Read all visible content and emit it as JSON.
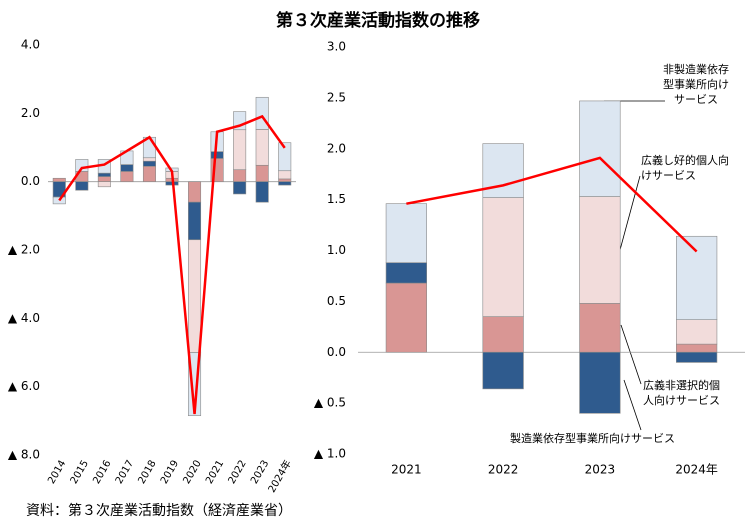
{
  "title": "第３次産業活動指数の推移",
  "source": "資料：第３次産業活動指数（経済産業省）",
  "chart_data": [
    {
      "type": "bar",
      "stacked": true,
      "categories": [
        "2014",
        "2015",
        "2016",
        "2017",
        "2018",
        "2019",
        "2020",
        "2021",
        "2022",
        "2023",
        "2024年"
      ],
      "ylim": [
        -8,
        4
      ],
      "yticks": [
        {
          "value": 4,
          "label": "4.0"
        },
        {
          "value": 2,
          "label": "2.0"
        },
        {
          "value": 0,
          "label": "0.0"
        },
        {
          "value": -2,
          "label": "▲ 2.0"
        },
        {
          "value": -4,
          "label": "▲ 4.0"
        },
        {
          "value": -6,
          "label": "▲ 6.0"
        },
        {
          "value": -8,
          "label": "▲ 8.0"
        }
      ],
      "series": [
        {
          "color": "#2f5b8e",
          "values": [
            -0.45,
            -0.25,
            0.1,
            0.2,
            0.15,
            -0.1,
            -1.1,
            0.2,
            -0.36,
            -0.6,
            -0.1
          ]
        },
        {
          "color": "#d99694",
          "values": [
            0.1,
            0.3,
            0.15,
            0.3,
            0.45,
            0.1,
            -0.6,
            0.68,
            0.35,
            0.48,
            0.08
          ]
        },
        {
          "color": "#f2dcdb",
          "values": [
            0,
            0,
            -0.15,
            0,
            0.1,
            0.2,
            -3.3,
            0,
            1.17,
            1.05,
            0.24
          ]
        },
        {
          "color": "#dce6f1",
          "values": [
            -0.2,
            0.35,
            0.4,
            0.4,
            0.6,
            0.1,
            -1.85,
            0.58,
            0.53,
            0.94,
            0.82
          ]
        }
      ],
      "line": {
        "color": "#ff0000",
        "values": [
          -0.55,
          0.4,
          0.5,
          0.9,
          1.3,
          0.3,
          -6.8,
          1.46,
          1.64,
          1.91,
          0.99
        ]
      }
    },
    {
      "type": "bar",
      "stacked": true,
      "categories": [
        "2021",
        "2022",
        "2023",
        "2024年"
      ],
      "ylim": [
        -1,
        3
      ],
      "yticks": [
        {
          "value": 3,
          "label": "3.0"
        },
        {
          "value": 2.5,
          "label": "2.5"
        },
        {
          "value": 2,
          "label": "2.0"
        },
        {
          "value": 1.5,
          "label": "1.5"
        },
        {
          "value": 1,
          "label": "1.0"
        },
        {
          "value": 0.5,
          "label": "0.5"
        },
        {
          "value": 0,
          "label": "0.0"
        },
        {
          "value": -0.5,
          "label": "▲ 0.5"
        },
        {
          "value": -1,
          "label": "▲ 1.0"
        }
      ],
      "series": [
        {
          "name": "製造業依存型事業所向けサービス",
          "color": "#2f5b8e",
          "values": [
            0.2,
            -0.36,
            -0.6,
            -0.1
          ]
        },
        {
          "name": "広義非選択的個人向けサービス",
          "color": "#d99694",
          "values": [
            0.68,
            0.35,
            0.48,
            0.08
          ]
        },
        {
          "name": "広義し好的個人向けサービス",
          "color": "#f2dcdb",
          "values": [
            0,
            1.17,
            1.05,
            0.24
          ]
        },
        {
          "name": "非製造業依存型事業所向けサービス",
          "color": "#dce6f1",
          "values": [
            0.58,
            0.53,
            0.94,
            0.82
          ]
        }
      ],
      "line": {
        "color": "#ff0000",
        "values": [
          1.46,
          1.64,
          1.91,
          0.99
        ]
      }
    }
  ]
}
